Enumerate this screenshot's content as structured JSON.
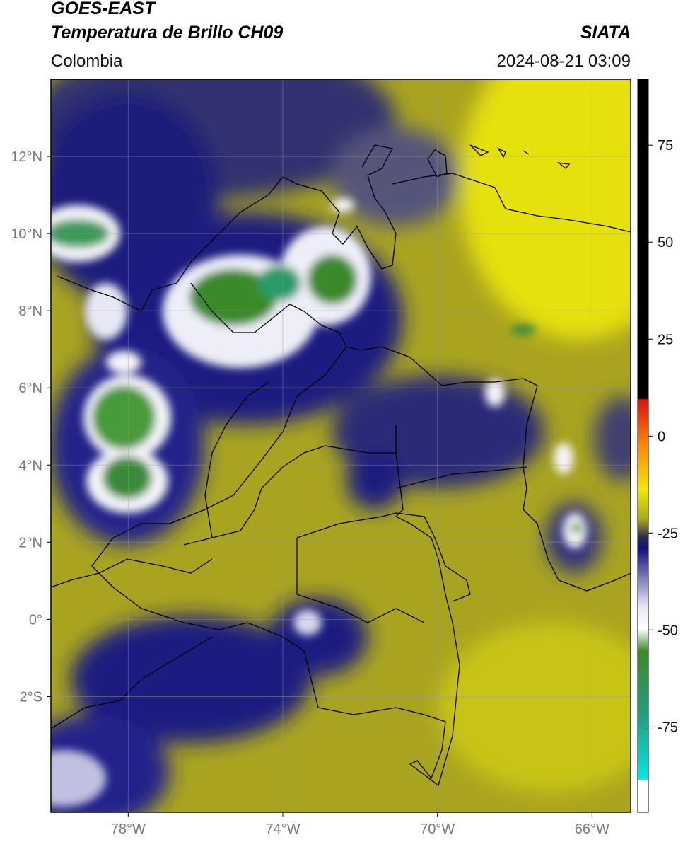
{
  "header": {
    "satellite": "GOES-EAST",
    "product": "Temperatura de Brillo CH09",
    "source": "SIATA",
    "region": "Colombia",
    "datetime": "2024-08-21 03:09"
  },
  "map": {
    "xlim": [
      -80,
      -65
    ],
    "ylim": [
      -5,
      14
    ],
    "xticks": [
      {
        "value": -78,
        "label": "78°W"
      },
      {
        "value": -74,
        "label": "74°W"
      },
      {
        "value": -70,
        "label": "70°W"
      },
      {
        "value": -66,
        "label": "66°W"
      }
    ],
    "yticks": [
      {
        "value": 12,
        "label": "12°N"
      },
      {
        "value": 10,
        "label": "10°N"
      },
      {
        "value": 8,
        "label": "8°N"
      },
      {
        "value": 6,
        "label": "6°N"
      },
      {
        "value": 4,
        "label": "4°N"
      },
      {
        "value": 2,
        "label": "2°N"
      },
      {
        "value": 0,
        "label": "0°"
      },
      {
        "value": -2,
        "label": "2°S"
      }
    ],
    "grid": true
  },
  "colorbar": {
    "lim": [
      -97,
      92
    ],
    "ticks": [
      75,
      50,
      25,
      0,
      -25,
      -50,
      -75
    ]
  }
}
